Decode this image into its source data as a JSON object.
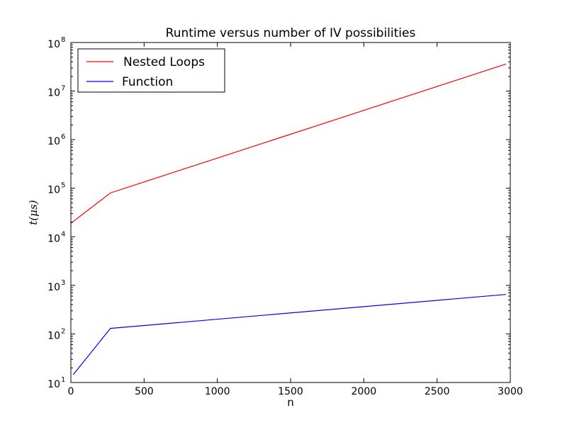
{
  "chart_data": {
    "type": "line",
    "title": "Runtime versus number of IV possibilities",
    "xlabel": "n",
    "ylabel": "t(μs)",
    "xlim": [
      0,
      3000
    ],
    "ylim": [
      10,
      100000000
    ],
    "yscale": "log",
    "grid": false,
    "legend_position": "upper-left",
    "xticks": [
      {
        "value": 0,
        "label": "0"
      },
      {
        "value": 500,
        "label": "500"
      },
      {
        "value": 1000,
        "label": "1000"
      },
      {
        "value": 1500,
        "label": "1500"
      },
      {
        "value": 2000,
        "label": "2000"
      },
      {
        "value": 2500,
        "label": "2500"
      },
      {
        "value": 3000,
        "label": "3000"
      }
    ],
    "yticks": [
      {
        "value": 10,
        "base": "10",
        "exp": "1"
      },
      {
        "value": 100,
        "base": "10",
        "exp": "2"
      },
      {
        "value": 1000,
        "base": "10",
        "exp": "3"
      },
      {
        "value": 10000,
        "base": "10",
        "exp": "4"
      },
      {
        "value": 100000,
        "base": "10",
        "exp": "5"
      },
      {
        "value": 1000000,
        "base": "10",
        "exp": "6"
      },
      {
        "value": 10000000,
        "base": "10",
        "exp": "7"
      },
      {
        "value": 100000000,
        "base": "10",
        "exp": "8"
      }
    ],
    "series": [
      {
        "name": "Nested Loops",
        "color": "#ff0000",
        "x": [
          0,
          270,
          2970
        ],
        "y": [
          19000,
          80000,
          36000000
        ]
      },
      {
        "name": "Function",
        "color": "#0000ff",
        "x": [
          16,
          270,
          2970
        ],
        "y": [
          14.5,
          130,
          650
        ]
      }
    ]
  }
}
